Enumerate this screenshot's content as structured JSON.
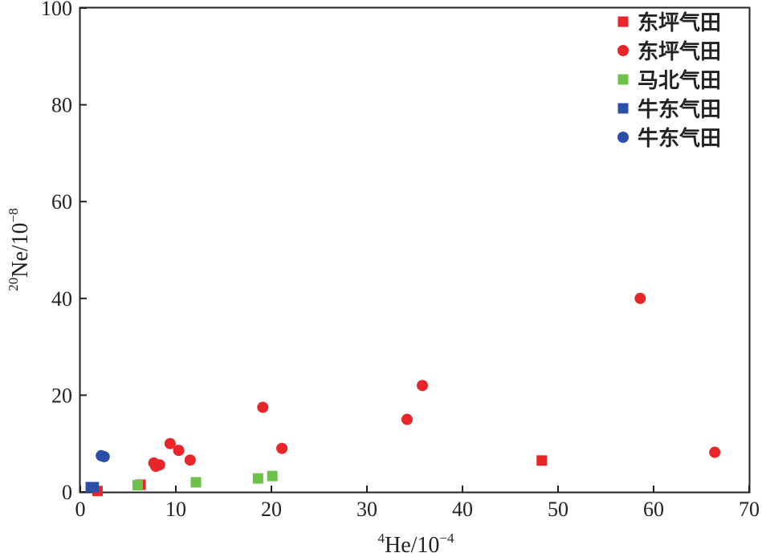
{
  "chart_data": {
    "type": "scatter",
    "xlabel": {
      "sup": "4",
      "base": "He/10",
      "exp": "−4"
    },
    "ylabel": {
      "sup": "20",
      "base": "Ne/10",
      "exp": "−8"
    },
    "xlim": [
      0,
      70
    ],
    "ylim": [
      0,
      100
    ],
    "xticks": [
      0,
      10,
      20,
      30,
      40,
      50,
      60,
      70
    ],
    "yticks": [
      0,
      20,
      40,
      60,
      80,
      100
    ],
    "grid": false,
    "legend_position": "top-right",
    "series": [
      {
        "name": "东坪气田",
        "marker": "square",
        "color": "#e8262a",
        "points": [
          [
            1.8,
            0.2
          ],
          [
            6.3,
            1.5
          ],
          [
            48.3,
            6.5
          ]
        ]
      },
      {
        "name": "东坪气田",
        "marker": "circle",
        "color": "#e8262a",
        "points": [
          [
            7.7,
            6.0
          ],
          [
            7.9,
            5.3
          ],
          [
            8.3,
            5.6
          ],
          [
            9.4,
            10.0
          ],
          [
            10.3,
            8.6
          ],
          [
            11.5,
            6.6
          ],
          [
            19.1,
            17.5
          ],
          [
            21.1,
            9.0
          ],
          [
            34.2,
            15.0
          ],
          [
            35.8,
            22.0
          ],
          [
            58.6,
            40.0
          ],
          [
            66.4,
            8.2
          ]
        ]
      },
      {
        "name": "马北气田",
        "marker": "square",
        "color": "#6cc24a",
        "points": [
          [
            6.0,
            1.4
          ],
          [
            12.1,
            2.0
          ],
          [
            18.6,
            2.8
          ],
          [
            20.1,
            3.3
          ]
        ]
      },
      {
        "name": "牛东气田",
        "marker": "square",
        "color": "#2b4fa8",
        "points": [
          [
            1.1,
            1.0
          ],
          [
            1.4,
            1.0
          ]
        ]
      },
      {
        "name": "牛东气田",
        "marker": "circle",
        "color": "#2b4fa8",
        "points": [
          [
            2.2,
            7.5
          ],
          [
            2.5,
            7.3
          ]
        ]
      }
    ]
  }
}
